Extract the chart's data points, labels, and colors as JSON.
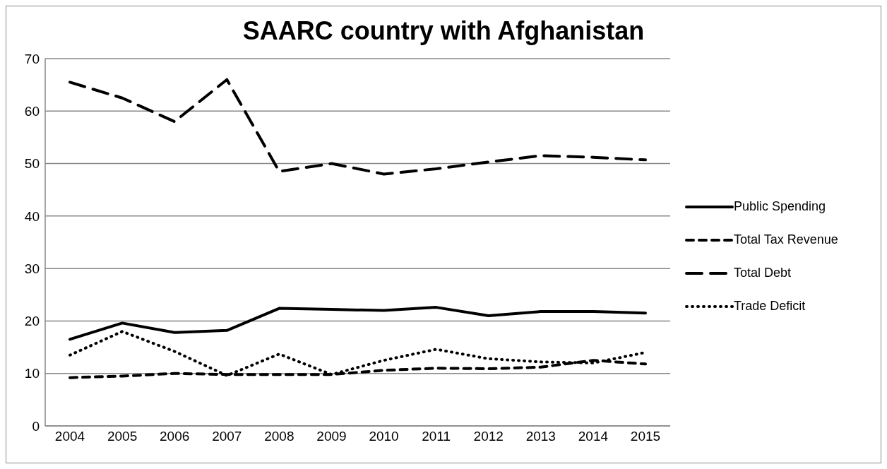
{
  "chart_data": {
    "type": "line",
    "title": "SAARC country with Afghanistan",
    "categories": [
      "2004",
      "2005",
      "2006",
      "2007",
      "2008",
      "2009",
      "2010",
      "2011",
      "2012",
      "2013",
      "2014",
      "2015"
    ],
    "series": [
      {
        "name": "Public Spending",
        "color": "#000000",
        "line_style": "solid",
        "values": [
          16.5,
          19.6,
          17.8,
          18.2,
          22.4,
          22.2,
          22,
          22.6,
          21,
          21.8,
          21.8,
          21.5
        ]
      },
      {
        "name": "Total Tax Revenue",
        "color": "#000000",
        "line_style": "dashed",
        "values": [
          9.2,
          9.5,
          10,
          9.8,
          9.8,
          9.8,
          10.6,
          11,
          10.9,
          11.2,
          12.5,
          11.8
        ]
      },
      {
        "name": "Total Debt",
        "color": "#000000",
        "line_style": "longdash",
        "values": [
          65.5,
          62.5,
          58,
          66,
          48.5,
          50,
          48,
          49,
          50.3,
          51.5,
          51.2,
          50.7
        ]
      },
      {
        "name": "Trade Deficit",
        "color": "#000000",
        "line_style": "dotted",
        "values": [
          13.5,
          18,
          14.2,
          9.6,
          13.7,
          9.8,
          12.5,
          14.6,
          12.8,
          12.2,
          12,
          14
        ]
      }
    ],
    "ylim": [
      0,
      70
    ],
    "yticks": [
      0,
      10,
      20,
      30,
      40,
      50,
      60,
      70
    ],
    "grid": "y",
    "legend": "right",
    "marker": "none"
  }
}
